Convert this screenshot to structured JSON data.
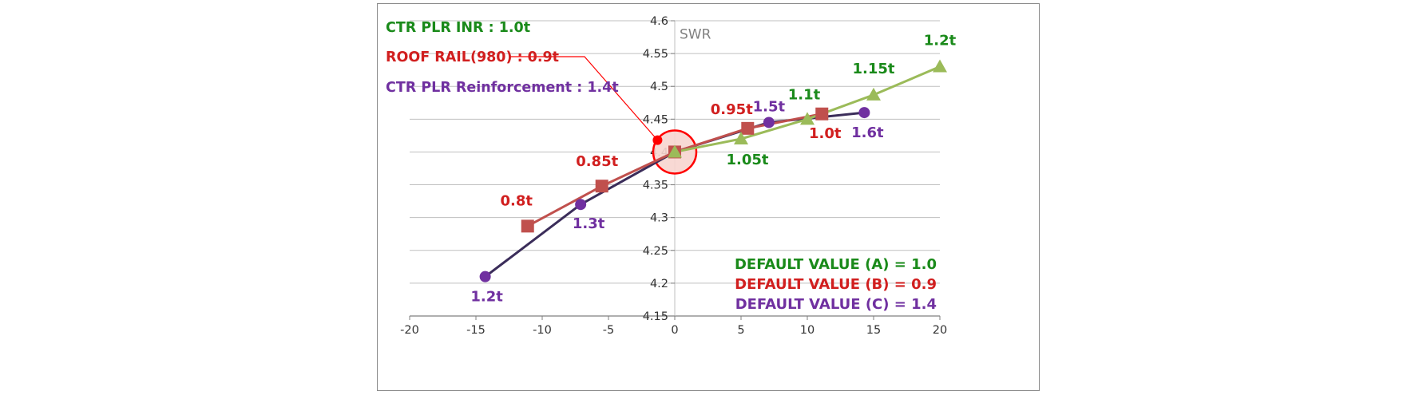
{
  "chart_data": {
    "type": "line",
    "title": "",
    "xlabel": "",
    "ylabel": "SWR",
    "xlim": [
      -20,
      20
    ],
    "ylim": [
      4.15,
      4.6
    ],
    "x_ticks": [
      -20,
      -15,
      -10,
      -5,
      0,
      5,
      10,
      15,
      20
    ],
    "x_tick_labels": [
      "-20",
      "-15",
      "-10",
      "-5",
      "0",
      "5",
      "10",
      "15",
      "20"
    ],
    "y_ticks": [
      4.15,
      4.2,
      4.25,
      4.3,
      4.35,
      4.4,
      4.45,
      4.5,
      4.55,
      4.6
    ],
    "y_tick_labels": [
      "4.15",
      "4.2",
      "4.25",
      "4.3",
      "4.35",
      "4.4",
      "4.45",
      "4.5",
      "4.55",
      "4.6"
    ],
    "grid": "horizontal",
    "series": [
      {
        "name": "CTR PLR INR : 1.0t",
        "color": "#9bbb59",
        "label_color": "#1a8a1a",
        "marker": "triangle",
        "points": [
          {
            "x": 0,
            "y": 4.4,
            "label": ""
          },
          {
            "x": 5,
            "y": 4.42,
            "label": "1.05t"
          },
          {
            "x": 10,
            "y": 4.45,
            "label": "1.1t"
          },
          {
            "x": 15,
            "y": 4.487,
            "label": "1.15t"
          },
          {
            "x": 20,
            "y": 4.53,
            "label": "1.2t"
          }
        ]
      },
      {
        "name": "ROOF RAIL(980) : 0.9t",
        "color": "#c0504d",
        "label_color": "#d11f1f",
        "marker": "square",
        "points": [
          {
            "x": -11.1,
            "y": 4.287,
            "label": "0.8t"
          },
          {
            "x": -5.5,
            "y": 4.348,
            "label": "0.85t"
          },
          {
            "x": 0,
            "y": 4.4,
            "label": ""
          },
          {
            "x": 5.5,
            "y": 4.436,
            "label": "0.95t"
          },
          {
            "x": 11.1,
            "y": 4.458,
            "label": "1.0t"
          }
        ]
      },
      {
        "name": "CTR PLR Reinforcement : 1.4t",
        "color": "#3b2d5a",
        "marker_color": "#7030a0",
        "label_color": "#7030a0",
        "marker": "circle",
        "points": [
          {
            "x": -14.3,
            "y": 4.21,
            "label": "1.2t"
          },
          {
            "x": -7.1,
            "y": 4.32,
            "label": "1.3t"
          },
          {
            "x": 0,
            "y": 4.4,
            "label": ""
          },
          {
            "x": 7.1,
            "y": 4.445,
            "label": "1.5t"
          },
          {
            "x": 14.3,
            "y": 4.46,
            "label": "1.6t"
          }
        ]
      }
    ],
    "legend": [
      {
        "text": "CTR PLR INR : 1.0t",
        "color": "#1a8a1a"
      },
      {
        "text": "ROOF RAIL(980) : 0.9t",
        "color": "#d11f1f"
      },
      {
        "text": "CTR PLR Reinforcement : 1.4t",
        "color": "#7030a0"
      }
    ],
    "legend_position": "top-left",
    "annotations": [
      {
        "text": "DEFAULT VALUE (A) = 1.0",
        "color": "#1a8a1a"
      },
      {
        "text": "DEFAULT VALUE (B) = 0.9",
        "color": "#d11f1f"
      },
      {
        "text": "DEFAULT VALUE (C) = 1.4",
        "color": "#7030a0"
      }
    ],
    "annotations_position": "bottom-right",
    "callout_point": {
      "x": -1.3,
      "y": 4.418
    },
    "highlight_point": {
      "x": 0,
      "y": 4.4
    }
  }
}
